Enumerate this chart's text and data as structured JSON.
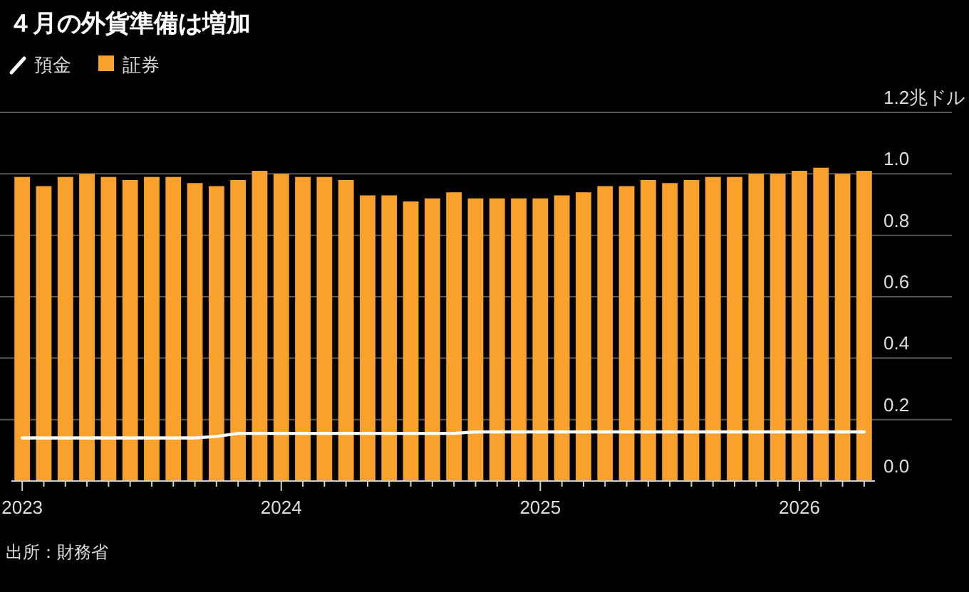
{
  "chart_data": {
    "type": "bar",
    "title": "４月の外貨準備は増加",
    "categories": [
      "2023",
      null,
      null,
      null,
      null,
      null,
      null,
      null,
      null,
      null,
      null,
      null,
      "2024",
      null,
      null,
      null,
      null,
      null,
      null,
      null,
      null,
      null,
      null,
      null,
      "2025",
      null,
      null,
      null,
      null,
      null,
      null,
      null,
      null,
      null,
      null,
      null,
      "2026",
      null,
      null,
      null
    ],
    "series": [
      {
        "name": "預金",
        "type": "line",
        "color": "#ffffff",
        "values": [
          0.14,
          0.14,
          0.14,
          0.14,
          0.14,
          0.14,
          0.14,
          0.14,
          0.14,
          0.145,
          0.155,
          0.155,
          0.155,
          0.155,
          0.155,
          0.155,
          0.155,
          0.155,
          0.155,
          0.155,
          0.155,
          0.16,
          0.16,
          0.16,
          0.16,
          0.16,
          0.16,
          0.16,
          0.16,
          0.16,
          0.16,
          0.16,
          0.16,
          0.16,
          0.16,
          0.16,
          0.16,
          0.16,
          0.16,
          0.16
        ]
      },
      {
        "name": "証券",
        "color": "#f9a12d",
        "values": [
          0.99,
          0.96,
          0.99,
          1.0,
          0.99,
          0.98,
          0.99,
          0.99,
          0.97,
          0.96,
          0.98,
          1.01,
          1.0,
          0.99,
          0.99,
          0.98,
          0.93,
          0.93,
          0.91,
          0.92,
          0.94,
          0.92,
          0.92,
          0.92,
          0.92,
          0.93,
          0.94,
          0.96,
          0.96,
          0.98,
          0.97,
          0.98,
          0.99,
          0.99,
          1.0,
          1.0,
          1.01,
          1.02,
          1.0,
          1.01
        ]
      }
    ],
    "ylim": [
      0,
      1.2
    ],
    "yticks": [
      {
        "value": 0,
        "label": "0.0"
      },
      0.2,
      0.4,
      0.6,
      0.8,
      {
        "value": 1,
        "label": "1.0"
      },
      {
        "value": 1.2,
        "label": "1.2兆ドル"
      }
    ],
    "grid": "y",
    "legend": "top left",
    "annotations": [
      "出所：財務省"
    ]
  }
}
